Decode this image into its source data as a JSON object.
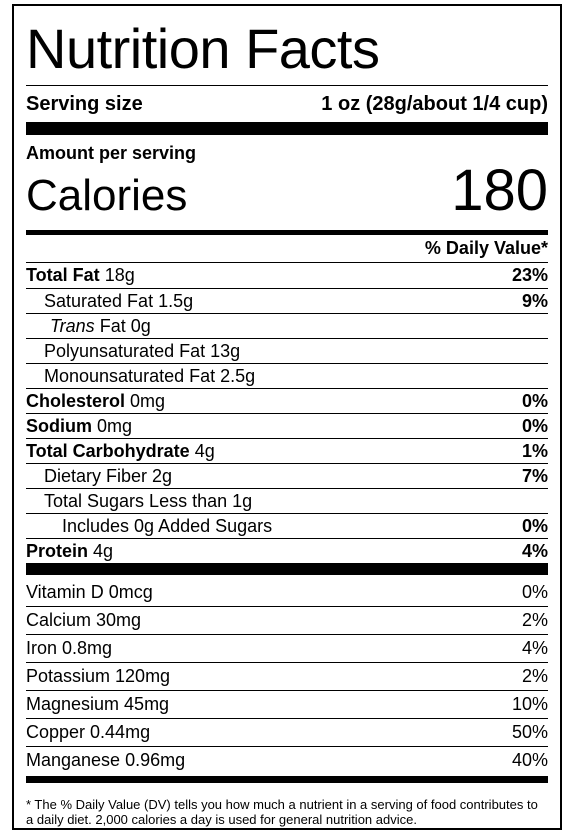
{
  "title": "Nutrition Facts",
  "serving": {
    "label": "Serving size",
    "value": "1 oz (28g/about 1/4 cup)"
  },
  "amount_label": "Amount per serving",
  "calories": {
    "label": "Calories",
    "value": "180"
  },
  "dv_header": "% Daily Value*",
  "nutrients": [
    {
      "name": "Total Fat",
      "amount": "18g",
      "dv": "23%"
    },
    {
      "name": "Saturated Fat",
      "amount": "1.5g",
      "dv": "9%"
    },
    {
      "name": "Trans",
      "amount": "Fat 0g",
      "dv": ""
    },
    {
      "name": "Polyunsaturated Fat 13g",
      "amount": "",
      "dv": ""
    },
    {
      "name": "Monounsaturated Fat 2.5g",
      "amount": "",
      "dv": ""
    },
    {
      "name": "Cholesterol",
      "amount": "0mg",
      "dv": "0%"
    },
    {
      "name": "Sodium",
      "amount": "0mg",
      "dv": "0%"
    },
    {
      "name": "Total Carbohydrate",
      "amount": "4g",
      "dv": "1%"
    },
    {
      "name": "Dietary Fiber 2g",
      "amount": "",
      "dv": "7%"
    },
    {
      "name": "Total Sugars Less than 1g",
      "amount": "",
      "dv": ""
    },
    {
      "name": "Includes 0g Added Sugars",
      "amount": "",
      "dv": "0%"
    },
    {
      "name": "Protein",
      "amount": "4g",
      "dv": "4%"
    }
  ],
  "vitamins": [
    {
      "name": "Vitamin D 0mcg",
      "dv": "0%"
    },
    {
      "name": "Calcium 30mg",
      "dv": "2%"
    },
    {
      "name": "Iron 0.8mg",
      "dv": "4%"
    },
    {
      "name": "Potassium 120mg",
      "dv": "2%"
    },
    {
      "name": "Magnesium 45mg",
      "dv": "10%"
    },
    {
      "name": "Copper 0.44mg",
      "dv": "50%"
    },
    {
      "name": "Manganese 0.96mg",
      "dv": "40%"
    }
  ],
  "footnote": "* The % Daily Value (DV) tells you how much a nutrient in a serving of food contributes to a daily diet. 2,000 calories a day is used for general nutrition advice."
}
